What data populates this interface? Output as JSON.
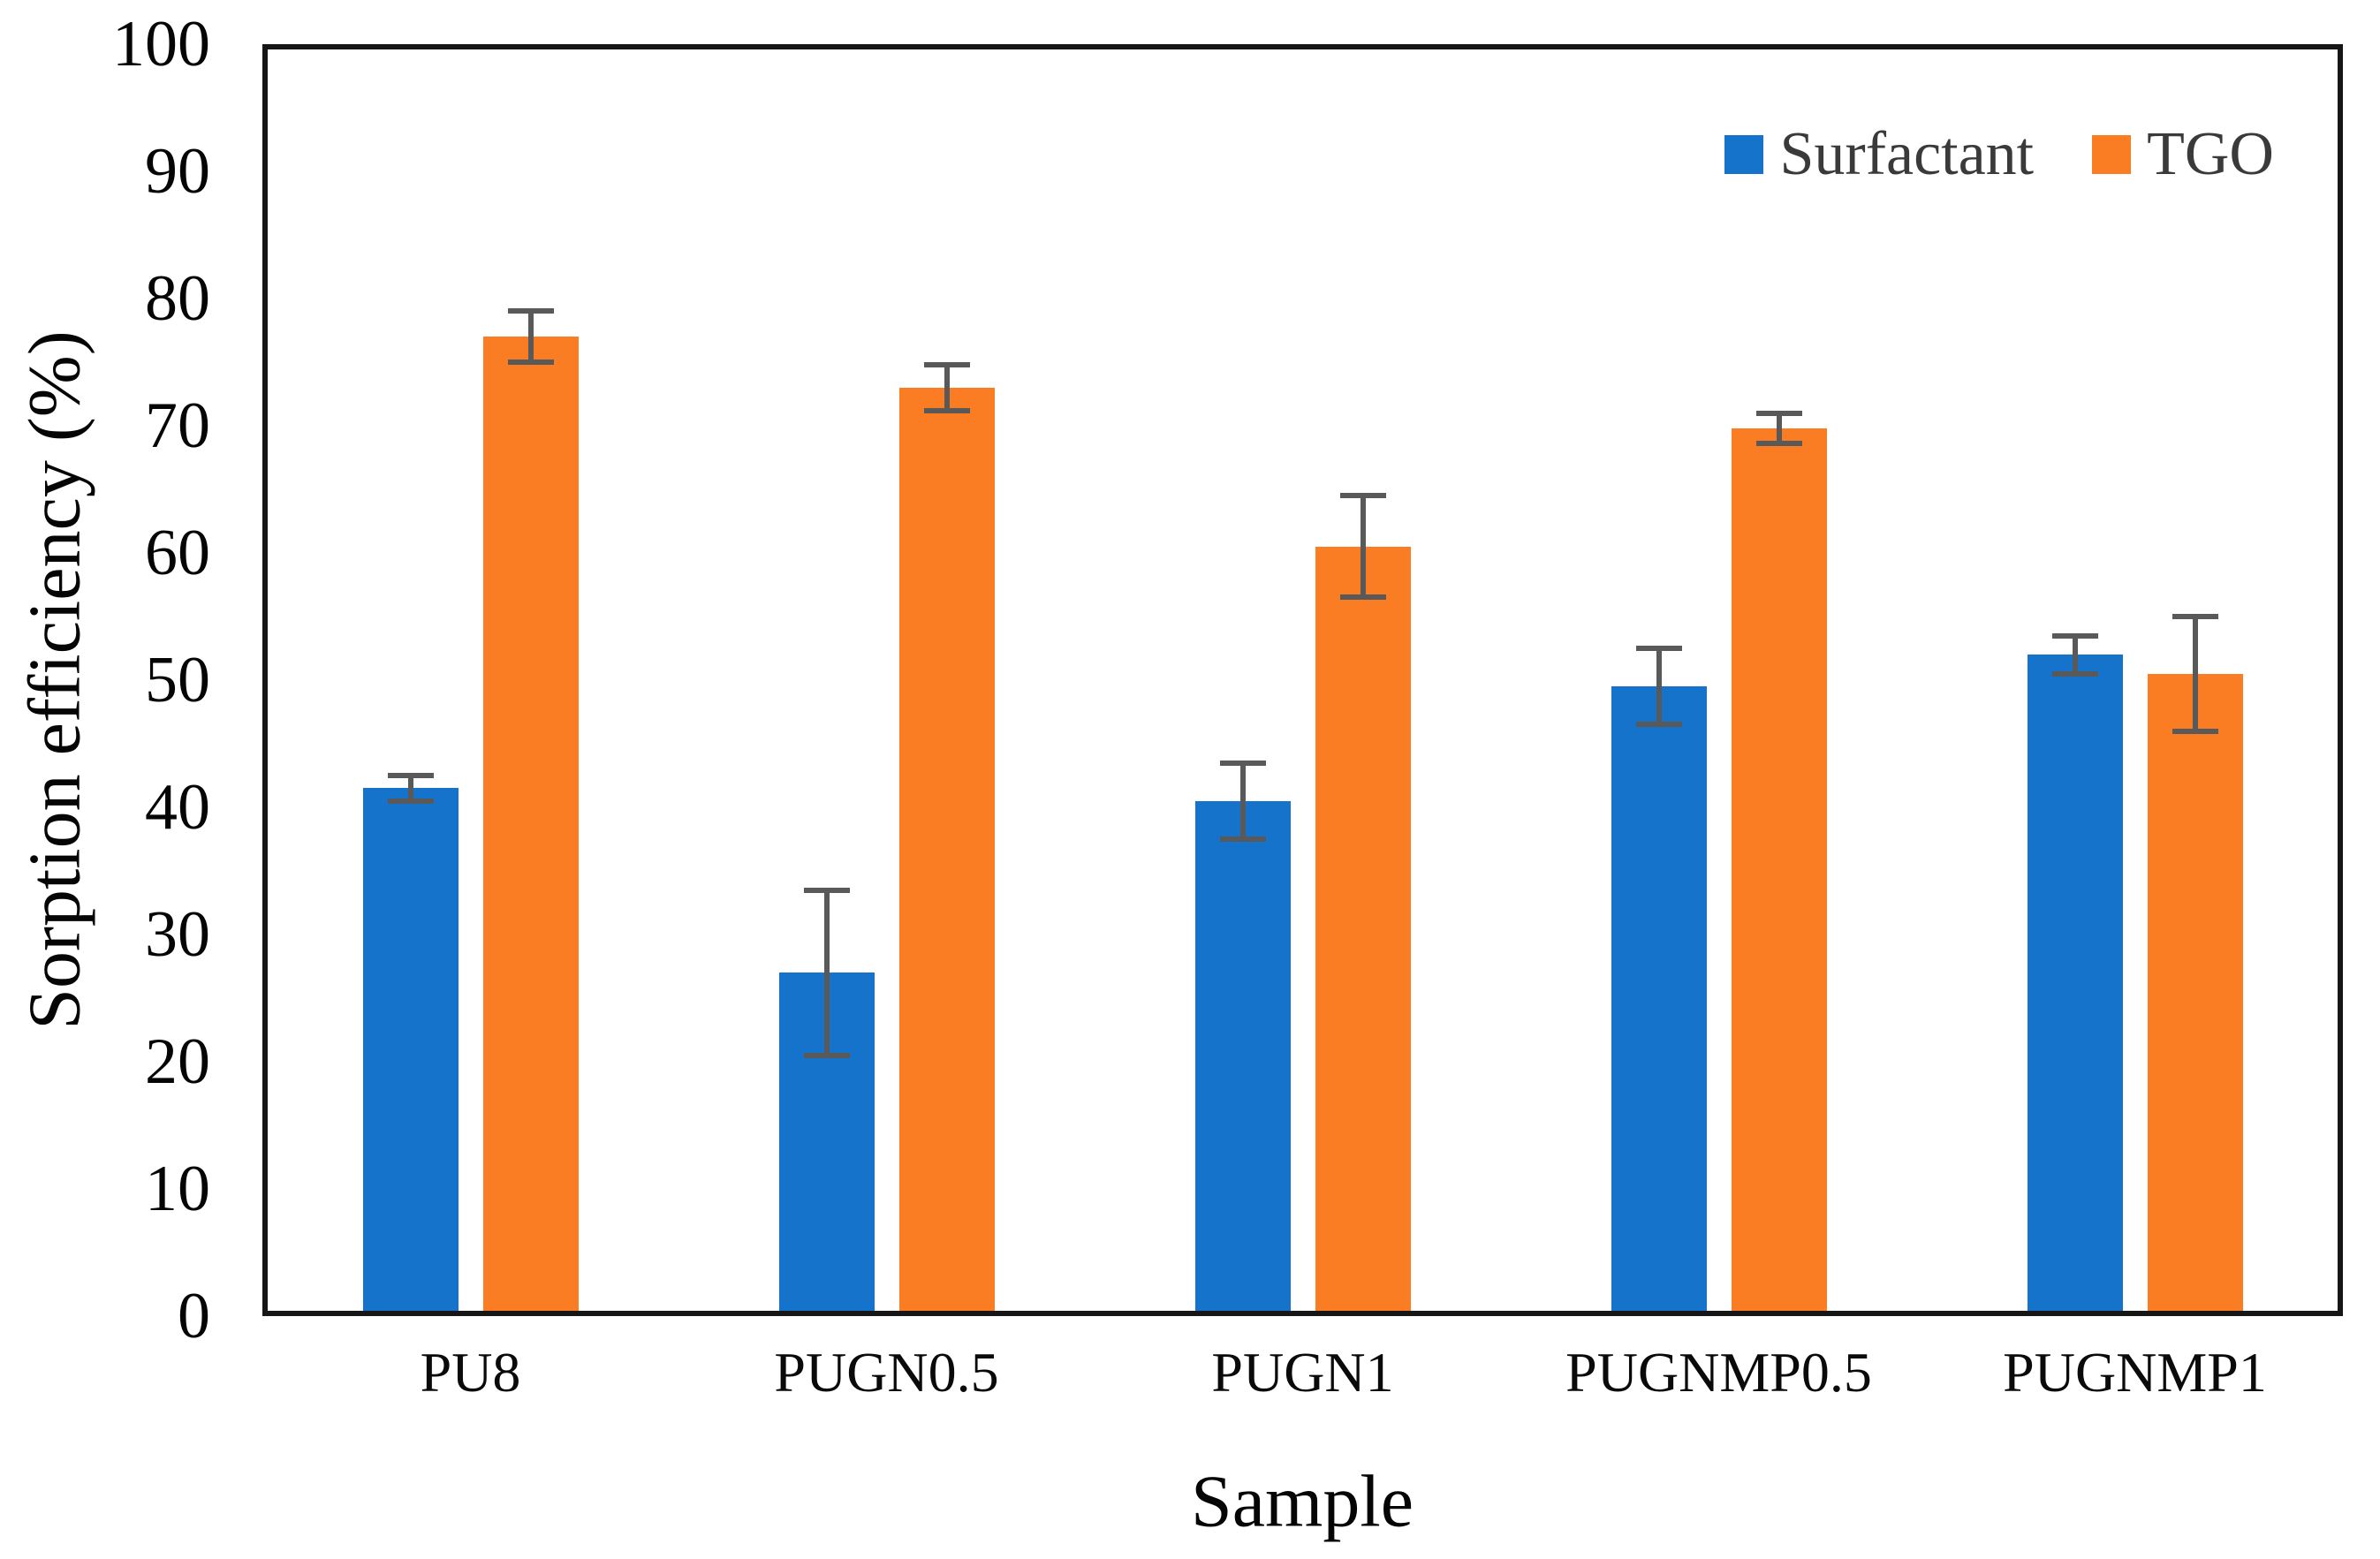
{
  "chart_data": {
    "type": "bar",
    "title": "",
    "xlabel": "Sample",
    "ylabel": "Sorption efficiency (%)",
    "ylim": [
      0,
      100
    ],
    "ytick_step": 10,
    "grid": false,
    "legend_position": "top-right-inside",
    "error_bar_color": "#595959",
    "frame_color": "#161616",
    "categories": [
      "PU8",
      "PUGN0.5",
      "PUGN1",
      "PUGNMP0.5",
      "PUGNMP1"
    ],
    "series": [
      {
        "name": "Surfactant",
        "color": "#1573CB",
        "values": [
          41.5,
          27.0,
          40.5,
          49.5,
          52.0
        ],
        "errors": [
          1.0,
          6.5,
          3.0,
          3.0,
          1.5
        ]
      },
      {
        "name": "TGO",
        "color": "#FB7D23",
        "values": [
          77.0,
          73.0,
          60.5,
          69.8,
          50.5
        ],
        "errors": [
          2.0,
          1.8,
          4.0,
          1.2,
          4.5
        ]
      }
    ]
  }
}
